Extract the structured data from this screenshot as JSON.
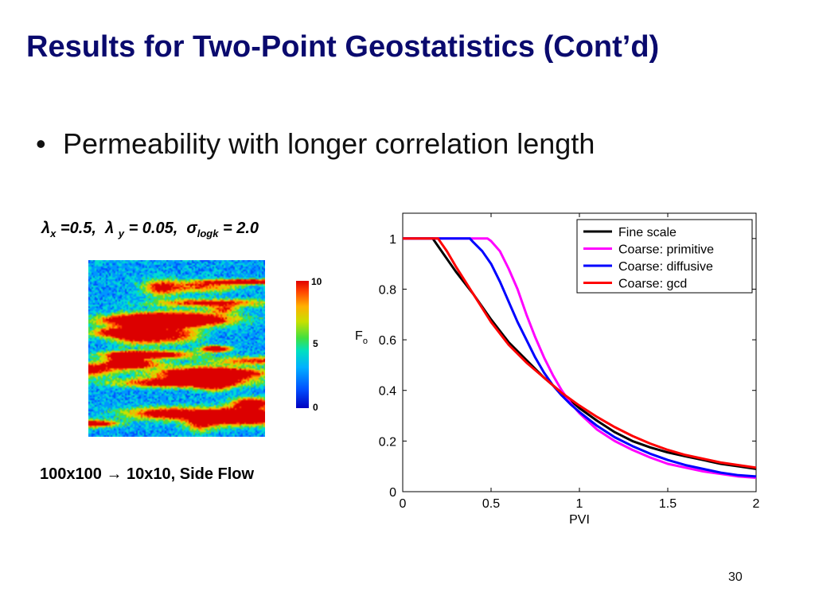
{
  "slide": {
    "title": "Results for Two-Point Geostatistics (Cont’d)",
    "bullet_symbol": "•",
    "bullet": "Permeability with longer correlation length",
    "params": {
      "lambda_symbol": "λ",
      "sigma_symbol": "σ",
      "lx_sub": "x",
      "lx_val": " =0.5,",
      "ly_sub": "y",
      "ly_val": " = 0.05,",
      "sigma_sub": "logk",
      "sigma_val": " = 2.0"
    },
    "colorbar": {
      "max": "10",
      "mid": "5",
      "min": "0"
    },
    "caption": {
      "left": "100x100",
      "arrow": "→",
      "right": "10x10, Side Flow"
    },
    "page_number": "30"
  },
  "chart_data": {
    "type": "line",
    "xlabel": "PVI",
    "ylabel_main": "F",
    "ylabel_sub": "o",
    "xlim": [
      0,
      2
    ],
    "ylim": [
      0,
      1.1
    ],
    "xticks": [
      "0",
      "0.5",
      "1",
      "1.5",
      "2"
    ],
    "yticks": [
      "0",
      "0.2",
      "0.4",
      "0.6",
      "0.8",
      "1"
    ],
    "grid": false,
    "legend_position": "top-right",
    "series": [
      {
        "name": "Fine scale",
        "color": "#000000",
        "x": [
          0,
          0.17,
          0.2,
          0.25,
          0.3,
          0.4,
          0.5,
          0.6,
          0.7,
          0.8,
          0.9,
          1.0,
          1.1,
          1.2,
          1.3,
          1.4,
          1.5,
          1.6,
          1.7,
          1.8,
          1.9,
          2.0
        ],
        "y": [
          1,
          1,
          0.97,
          0.92,
          0.87,
          0.78,
          0.68,
          0.59,
          0.52,
          0.45,
          0.39,
          0.33,
          0.28,
          0.235,
          0.2,
          0.175,
          0.155,
          0.14,
          0.125,
          0.11,
          0.1,
          0.09
        ]
      },
      {
        "name": "Coarse: primitive",
        "color": "#ff00ff",
        "x": [
          0,
          0.48,
          0.5,
          0.55,
          0.6,
          0.65,
          0.7,
          0.75,
          0.8,
          0.85,
          0.9,
          0.95,
          1.0,
          1.1,
          1.2,
          1.3,
          1.4,
          1.5,
          1.6,
          1.7,
          1.8,
          1.9,
          2.0
        ],
        "y": [
          1,
          1,
          0.99,
          0.95,
          0.88,
          0.8,
          0.7,
          0.61,
          0.53,
          0.46,
          0.4,
          0.35,
          0.31,
          0.245,
          0.2,
          0.165,
          0.135,
          0.11,
          0.095,
          0.08,
          0.07,
          0.06,
          0.055
        ]
      },
      {
        "name": "Coarse: diffusive",
        "color": "#0000ff",
        "x": [
          0,
          0.38,
          0.4,
          0.45,
          0.5,
          0.55,
          0.6,
          0.65,
          0.7,
          0.75,
          0.8,
          0.85,
          0.9,
          0.95,
          1.0,
          1.1,
          1.2,
          1.3,
          1.4,
          1.5,
          1.6,
          1.7,
          1.8,
          1.9,
          2.0
        ],
        "y": [
          1,
          1,
          0.985,
          0.95,
          0.9,
          0.83,
          0.75,
          0.67,
          0.6,
          0.53,
          0.47,
          0.42,
          0.38,
          0.345,
          0.315,
          0.26,
          0.215,
          0.18,
          0.15,
          0.125,
          0.105,
          0.09,
          0.075,
          0.065,
          0.06
        ]
      },
      {
        "name": "Coarse: gcd",
        "color": "#ff0000",
        "x": [
          0,
          0.2,
          0.22,
          0.25,
          0.3,
          0.4,
          0.5,
          0.6,
          0.7,
          0.8,
          0.9,
          1.0,
          1.1,
          1.2,
          1.3,
          1.4,
          1.5,
          1.6,
          1.7,
          1.8,
          1.9,
          2.0
        ],
        "y": [
          1,
          1,
          0.98,
          0.95,
          0.89,
          0.78,
          0.67,
          0.58,
          0.51,
          0.45,
          0.39,
          0.34,
          0.295,
          0.255,
          0.22,
          0.19,
          0.165,
          0.145,
          0.13,
          0.115,
          0.105,
          0.095
        ]
      }
    ]
  }
}
